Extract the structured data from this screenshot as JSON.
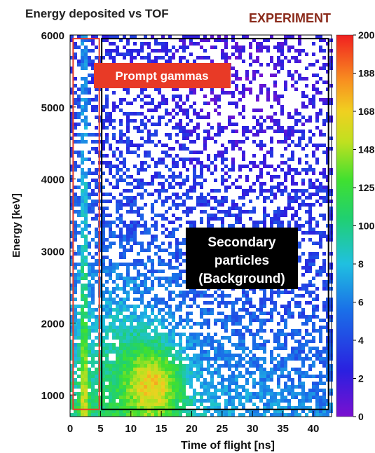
{
  "chart_data": {
    "type": "heatmap",
    "title": "Energy deposited vs TOF",
    "tag": "EXPERIMENT",
    "xlabel": "Time of flight [ns]",
    "ylabel": "Energy [keV]",
    "xlim": [
      0,
      43
    ],
    "ylim": [
      700,
      6000
    ],
    "x_ticks": [
      0,
      5,
      10,
      15,
      20,
      25,
      30,
      35,
      40
    ],
    "y_ticks": [
      1000,
      2000,
      3000,
      4000,
      5000,
      6000
    ],
    "colorbar": {
      "range": [
        0,
        200
      ],
      "ticks": [
        "0",
        "2",
        "4",
        "6",
        "8",
        "100",
        "125",
        "148",
        "168",
        "188",
        "200"
      ]
    },
    "regions": [
      {
        "label": "Prompt gammas",
        "x_range": [
          0.5,
          4.8
        ],
        "y_range": [
          800,
          5950
        ],
        "box_color": "#e83a26"
      },
      {
        "label": "Secondary particles\n(Background)",
        "x_range": [
          5.2,
          42.5
        ],
        "y_range": [
          800,
          5950
        ],
        "box_color": "#000000"
      }
    ],
    "features": {
      "prompt_band_x": 2.3,
      "hot_spot": {
        "x": 14,
        "y": 1150
      }
    },
    "colors": {
      "prompt_box": "#e83a26",
      "background_box": "#000000",
      "tag_color": "#8a2a1a"
    }
  }
}
